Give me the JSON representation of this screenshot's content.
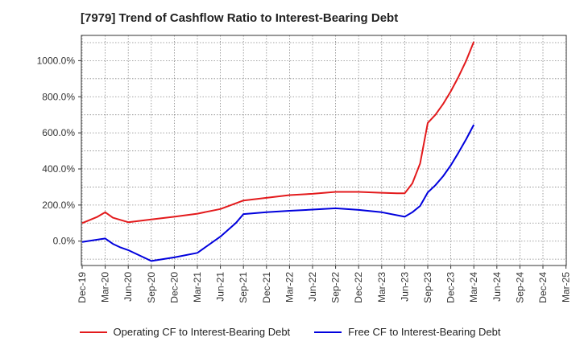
{
  "chart_data": {
    "type": "line",
    "title": "[7979]  Trend of Cashflow Ratio to Interest-Bearing Debt",
    "xlabel": "",
    "ylabel": "",
    "x_tick_labels": [
      "Dec-19",
      "Mar-20",
      "Jun-20",
      "Sep-20",
      "Dec-20",
      "Mar-21",
      "Jun-21",
      "Sep-21",
      "Dec-21",
      "Mar-22",
      "Jun-22",
      "Sep-22",
      "Dec-22",
      "Mar-23",
      "Jun-23",
      "Sep-23",
      "Dec-23",
      "Mar-24",
      "Jun-24",
      "Sep-24",
      "Dec-24",
      "Mar-25"
    ],
    "y_tick_labels": [
      "0.0%",
      "200.0%",
      "400.0%",
      "600.0%",
      "800.0%",
      "1000.0%"
    ],
    "y_ticks": [
      0,
      200,
      400,
      600,
      800,
      1000
    ],
    "ylim": [
      -135,
      1140
    ],
    "grid": true,
    "legend_position": "bottom",
    "series": [
      {
        "name": "Operating CF to Interest-Bearing Debt",
        "color": "#e31a1c",
        "values": [
          [
            0,
            100
          ],
          [
            2,
            135
          ],
          [
            3,
            160
          ],
          [
            4,
            130
          ],
          [
            6,
            105
          ],
          [
            9,
            120
          ],
          [
            12,
            135
          ],
          [
            15,
            152
          ],
          [
            18,
            178
          ],
          [
            21,
            225
          ],
          [
            24,
            240
          ],
          [
            27,
            255
          ],
          [
            30,
            262
          ],
          [
            33,
            273
          ],
          [
            36,
            273
          ],
          [
            39,
            268
          ],
          [
            41,
            265
          ],
          [
            42,
            265
          ],
          [
            43,
            320
          ],
          [
            44,
            430
          ],
          [
            45,
            655
          ],
          [
            46,
            700
          ],
          [
            47,
            760
          ],
          [
            48,
            830
          ],
          [
            49,
            910
          ],
          [
            50,
            1000
          ],
          [
            51,
            1105
          ]
        ]
      },
      {
        "name": "Free CF to Interest-Bearing Debt",
        "color": "#0000dd",
        "values": [
          [
            0,
            -5
          ],
          [
            3,
            15
          ],
          [
            4,
            -15
          ],
          [
            5,
            -35
          ],
          [
            6,
            -50
          ],
          [
            9,
            -110
          ],
          [
            12,
            -90
          ],
          [
            15,
            -65
          ],
          [
            18,
            25
          ],
          [
            20,
            100
          ],
          [
            21,
            150
          ],
          [
            24,
            160
          ],
          [
            27,
            168
          ],
          [
            30,
            175
          ],
          [
            33,
            182
          ],
          [
            36,
            173
          ],
          [
            39,
            160
          ],
          [
            42,
            135
          ],
          [
            43,
            160
          ],
          [
            44,
            195
          ],
          [
            45,
            270
          ],
          [
            46,
            310
          ],
          [
            47,
            360
          ],
          [
            48,
            420
          ],
          [
            49,
            490
          ],
          [
            50,
            565
          ],
          [
            51,
            645
          ]
        ]
      }
    ]
  }
}
